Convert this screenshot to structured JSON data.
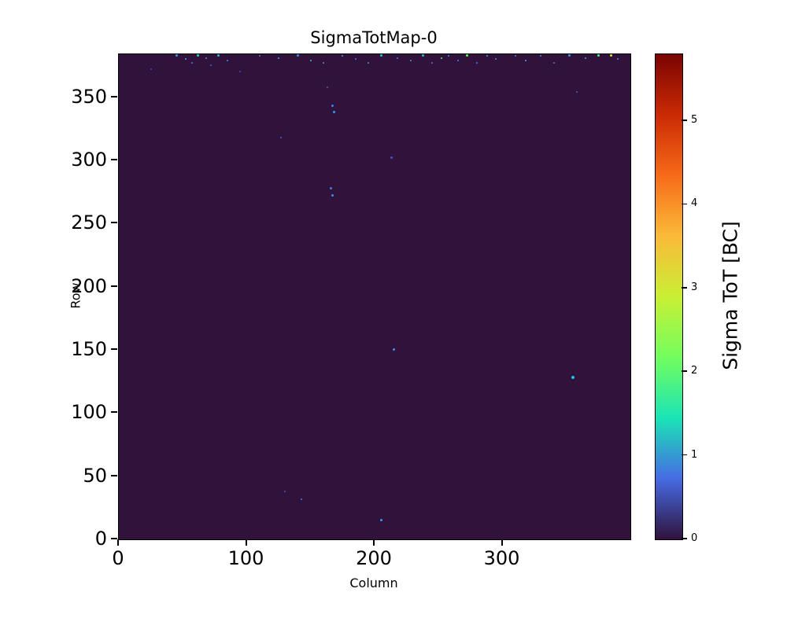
{
  "title": "SigmaTotMap-0",
  "chart_data": {
    "type": "heatmap",
    "title": "SigmaTotMap-0",
    "xlabel": "Column",
    "ylabel": "Row",
    "xlim": [
      0,
      400
    ],
    "ylim": [
      0,
      384
    ],
    "xticks": [
      0,
      100,
      200,
      300
    ],
    "yticks": [
      0,
      50,
      100,
      150,
      200,
      250,
      300,
      350
    ],
    "background_value": 0,
    "background_color": "#30123b",
    "colorbar": {
      "label": "Sigma ToT [BC]",
      "min": 0,
      "max": 5.8,
      "ticks": [
        0,
        1,
        2,
        3,
        4,
        5
      ],
      "colormap": "turbo",
      "stops": [
        {
          "pos": 0.0,
          "color": "#30123b"
        },
        {
          "pos": 0.125,
          "color": "#466be3"
        },
        {
          "pos": 0.25,
          "color": "#1ae4b6"
        },
        {
          "pos": 0.375,
          "color": "#72fe5e"
        },
        {
          "pos": 0.5,
          "color": "#c9ef34"
        },
        {
          "pos": 0.625,
          "color": "#faba39"
        },
        {
          "pos": 0.75,
          "color": "#f66b19"
        },
        {
          "pos": 0.875,
          "color": "#cb2a04"
        },
        {
          "pos": 1.0,
          "color": "#7a0403"
        }
      ]
    },
    "points": [
      {
        "col": 25,
        "row": 372,
        "sigma": 0.8,
        "color": "#3f58c9",
        "size": 2
      },
      {
        "col": 45,
        "row": 383,
        "sigma": 1.2,
        "color": "#2e9df1",
        "size": 3
      },
      {
        "col": 52,
        "row": 380,
        "sigma": 1.5,
        "color": "#1fc2de",
        "size": 2
      },
      {
        "col": 57,
        "row": 377,
        "sigma": 1.0,
        "color": "#3a7ff2",
        "size": 2
      },
      {
        "col": 62,
        "row": 383,
        "sigma": 1.8,
        "color": "#1ad5c0",
        "size": 3
      },
      {
        "col": 68,
        "row": 381,
        "sigma": 1.2,
        "color": "#2e9df1",
        "size": 2
      },
      {
        "col": 72,
        "row": 375,
        "sigma": 0.9,
        "color": "#3f63d8",
        "size": 2
      },
      {
        "col": 78,
        "row": 383,
        "sigma": 1.4,
        "color": "#25b8e8",
        "size": 3
      },
      {
        "col": 85,
        "row": 379,
        "sigma": 1.1,
        "color": "#3490f5",
        "size": 2
      },
      {
        "col": 95,
        "row": 370,
        "sigma": 0.7,
        "color": "#3b4fc0",
        "size": 2
      },
      {
        "col": 110,
        "row": 383,
        "sigma": 1.0,
        "color": "#3a7ff2",
        "size": 2
      },
      {
        "col": 125,
        "row": 381,
        "sigma": 1.3,
        "color": "#2aabec",
        "size": 2
      },
      {
        "col": 127,
        "row": 318,
        "sigma": 0.9,
        "color": "#3f63d8",
        "size": 2
      },
      {
        "col": 140,
        "row": 383,
        "sigma": 1.1,
        "color": "#3490f5",
        "size": 3
      },
      {
        "col": 150,
        "row": 379,
        "sigma": 1.6,
        "color": "#1cc8d8",
        "size": 2
      },
      {
        "col": 160,
        "row": 377,
        "sigma": 1.2,
        "color": "#2e9df1",
        "size": 2
      },
      {
        "col": 163,
        "row": 358,
        "sigma": 0.9,
        "color": "#3f63d8",
        "size": 2
      },
      {
        "col": 167,
        "row": 343,
        "sigma": 1.0,
        "color": "#3a7ff2",
        "size": 3
      },
      {
        "col": 168,
        "row": 338,
        "sigma": 1.2,
        "color": "#2e9df1",
        "size": 3
      },
      {
        "col": 166,
        "row": 278,
        "sigma": 1.0,
        "color": "#3a7ff2",
        "size": 3
      },
      {
        "col": 167,
        "row": 272,
        "sigma": 1.1,
        "color": "#3490f5",
        "size": 3
      },
      {
        "col": 175,
        "row": 383,
        "sigma": 1.3,
        "color": "#2aabec",
        "size": 2
      },
      {
        "col": 185,
        "row": 380,
        "sigma": 1.0,
        "color": "#3a7ff2",
        "size": 2
      },
      {
        "col": 195,
        "row": 377,
        "sigma": 1.2,
        "color": "#2e9df1",
        "size": 2
      },
      {
        "col": 205,
        "row": 383,
        "sigma": 1.5,
        "color": "#1fc2de",
        "size": 3
      },
      {
        "col": 213,
        "row": 302,
        "sigma": 0.8,
        "color": "#3f58c9",
        "size": 3
      },
      {
        "col": 215,
        "row": 150,
        "sigma": 1.1,
        "color": "#3490f5",
        "size": 3
      },
      {
        "col": 218,
        "row": 381,
        "sigma": 1.0,
        "color": "#3a7ff2",
        "size": 2
      },
      {
        "col": 228,
        "row": 379,
        "sigma": 1.2,
        "color": "#2e9df1",
        "size": 2
      },
      {
        "col": 238,
        "row": 383,
        "sigma": 1.4,
        "color": "#25b8e8",
        "size": 3
      },
      {
        "col": 245,
        "row": 377,
        "sigma": 1.0,
        "color": "#3a7ff2",
        "size": 2
      },
      {
        "col": 252,
        "row": 381,
        "sigma": 2.6,
        "color": "#4df65c",
        "size": 2
      },
      {
        "col": 258,
        "row": 383,
        "sigma": 1.2,
        "color": "#2e9df1",
        "size": 2
      },
      {
        "col": 265,
        "row": 379,
        "sigma": 1.1,
        "color": "#3490f5",
        "size": 2
      },
      {
        "col": 272,
        "row": 383,
        "sigma": 2.8,
        "color": "#62fb50",
        "size": 3
      },
      {
        "col": 280,
        "row": 377,
        "sigma": 1.0,
        "color": "#3a7ff2",
        "size": 2
      },
      {
        "col": 288,
        "row": 383,
        "sigma": 1.3,
        "color": "#2aabec",
        "size": 2
      },
      {
        "col": 295,
        "row": 380,
        "sigma": 1.2,
        "color": "#2e9df1",
        "size": 2
      },
      {
        "col": 310,
        "row": 383,
        "sigma": 1.0,
        "color": "#3a7ff2",
        "size": 2
      },
      {
        "col": 318,
        "row": 379,
        "sigma": 1.5,
        "color": "#1fc2de",
        "size": 2
      },
      {
        "col": 330,
        "row": 383,
        "sigma": 1.1,
        "color": "#3490f5",
        "size": 2
      },
      {
        "col": 340,
        "row": 377,
        "sigma": 1.0,
        "color": "#3a7ff2",
        "size": 2
      },
      {
        "col": 352,
        "row": 383,
        "sigma": 1.2,
        "color": "#2e9df1",
        "size": 3
      },
      {
        "col": 355,
        "row": 128,
        "sigma": 1.5,
        "color": "#1fc2de",
        "size": 4
      },
      {
        "col": 358,
        "row": 354,
        "sigma": 0.9,
        "color": "#3f63d8",
        "size": 2
      },
      {
        "col": 365,
        "row": 381,
        "sigma": 1.3,
        "color": "#2aabec",
        "size": 2
      },
      {
        "col": 375,
        "row": 383,
        "sigma": 2.5,
        "color": "#46f884",
        "size": 3
      },
      {
        "col": 385,
        "row": 383,
        "sigma": 3.5,
        "color": "#c6ef34",
        "size": 3
      },
      {
        "col": 390,
        "row": 380,
        "sigma": 1.2,
        "color": "#2e9df1",
        "size": 2
      },
      {
        "col": 130,
        "row": 38,
        "sigma": 0.8,
        "color": "#3f58c9",
        "size": 2
      },
      {
        "col": 143,
        "row": 32,
        "sigma": 1.0,
        "color": "#3a7ff2",
        "size": 2
      },
      {
        "col": 205,
        "row": 15,
        "sigma": 1.2,
        "color": "#2e9df1",
        "size": 3
      }
    ]
  }
}
